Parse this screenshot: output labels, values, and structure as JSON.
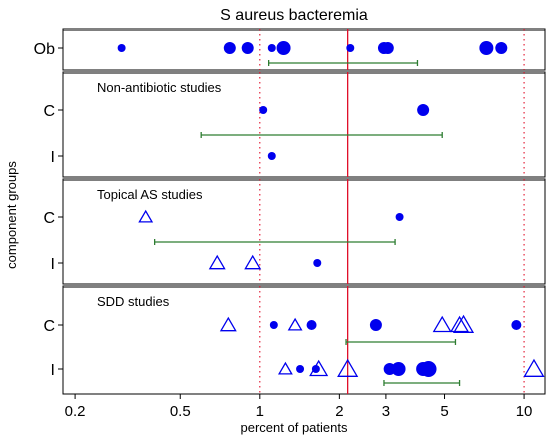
{
  "chart_data": {
    "type": "scatter",
    "title": "S aureus bacteremia",
    "xlabel": "percent of patients",
    "ylabel": "component groups",
    "x_scale": "log",
    "xlim": [
      0.18,
      12
    ],
    "x_ticks": [
      0.2,
      0.5,
      1,
      2,
      3,
      5,
      10
    ],
    "x_tick_labels": [
      "0.2",
      "0.5",
      "1",
      "2",
      "3",
      "5",
      "10"
    ],
    "reference_line": 2.15,
    "reference_color": "#e0102a",
    "dotted_lines": [
      1,
      10
    ],
    "dotted_color": "#e0102a",
    "point_color": "#0000ee",
    "interval_color": "#2e7d32",
    "panels": [
      {
        "label": "",
        "rows": [
          {
            "label": "Ob",
            "points": [
              {
                "x": 0.3,
                "size": 4,
                "shape": "circle"
              },
              {
                "x": 0.77,
                "size": 6,
                "shape": "circle"
              },
              {
                "x": 0.9,
                "size": 6,
                "shape": "circle"
              },
              {
                "x": 1.11,
                "size": 4,
                "shape": "circle"
              },
              {
                "x": 1.23,
                "size": 7,
                "shape": "circle"
              },
              {
                "x": 2.2,
                "size": 4,
                "shape": "circle"
              },
              {
                "x": 2.95,
                "size": 6,
                "shape": "circle"
              },
              {
                "x": 3.05,
                "size": 6,
                "shape": "circle"
              },
              {
                "x": 7.2,
                "size": 7,
                "shape": "circle"
              },
              {
                "x": 8.2,
                "size": 6,
                "shape": "circle"
              }
            ],
            "interval": [
              1.08,
              3.95
            ]
          }
        ]
      },
      {
        "label": "Non-antibiotic studies",
        "rows": [
          {
            "label": "C",
            "points": [
              {
                "x": 1.03,
                "size": 4,
                "shape": "circle"
              },
              {
                "x": 4.15,
                "size": 6,
                "shape": "circle"
              }
            ],
            "interval": [
              0.6,
              4.9
            ]
          },
          {
            "label": "I",
            "points": [
              {
                "x": 1.11,
                "size": 4,
                "shape": "circle"
              }
            ]
          }
        ]
      },
      {
        "label": "Topical AS studies",
        "rows": [
          {
            "label": "C",
            "points": [
              {
                "x": 0.37,
                "size": 6,
                "shape": "triangle"
              },
              {
                "x": 3.38,
                "size": 4,
                "shape": "circle"
              }
            ],
            "interval": [
              0.4,
              3.25
            ]
          },
          {
            "label": "I",
            "points": [
              {
                "x": 0.69,
                "size": 7,
                "shape": "triangle"
              },
              {
                "x": 0.94,
                "size": 7,
                "shape": "triangle"
              },
              {
                "x": 1.65,
                "size": 4,
                "shape": "circle"
              }
            ]
          }
        ]
      },
      {
        "label": "SDD studies",
        "rows": [
          {
            "label": "C",
            "points": [
              {
                "x": 0.76,
                "size": 7,
                "shape": "triangle"
              },
              {
                "x": 1.13,
                "size": 4,
                "shape": "circle"
              },
              {
                "x": 1.36,
                "size": 6,
                "shape": "triangle"
              },
              {
                "x": 1.57,
                "size": 5,
                "shape": "circle"
              },
              {
                "x": 2.75,
                "size": 6,
                "shape": "circle"
              },
              {
                "x": 4.9,
                "size": 8,
                "shape": "triangle"
              },
              {
                "x": 5.7,
                "size": 8,
                "shape": "triangle"
              },
              {
                "x": 5.9,
                "size": 9,
                "shape": "triangle"
              },
              {
                "x": 9.35,
                "size": 5,
                "shape": "circle"
              }
            ],
            "interval": [
              2.12,
              5.5
            ]
          },
          {
            "label": "I",
            "points": [
              {
                "x": 1.25,
                "size": 6,
                "shape": "triangle"
              },
              {
                "x": 1.42,
                "size": 4,
                "shape": "circle"
              },
              {
                "x": 1.63,
                "size": 4,
                "shape": "circle"
              },
              {
                "x": 1.67,
                "size": 8,
                "shape": "triangle"
              },
              {
                "x": 2.15,
                "size": 9,
                "shape": "triangle"
              },
              {
                "x": 3.1,
                "size": 6,
                "shape": "circle"
              },
              {
                "x": 3.35,
                "size": 7,
                "shape": "circle"
              },
              {
                "x": 4.15,
                "size": 7,
                "shape": "circle"
              },
              {
                "x": 4.35,
                "size": 8,
                "shape": "circle"
              },
              {
                "x": 10.9,
                "size": 9,
                "shape": "triangle"
              }
            ],
            "interval": [
              2.95,
              5.7
            ]
          }
        ]
      }
    ]
  }
}
